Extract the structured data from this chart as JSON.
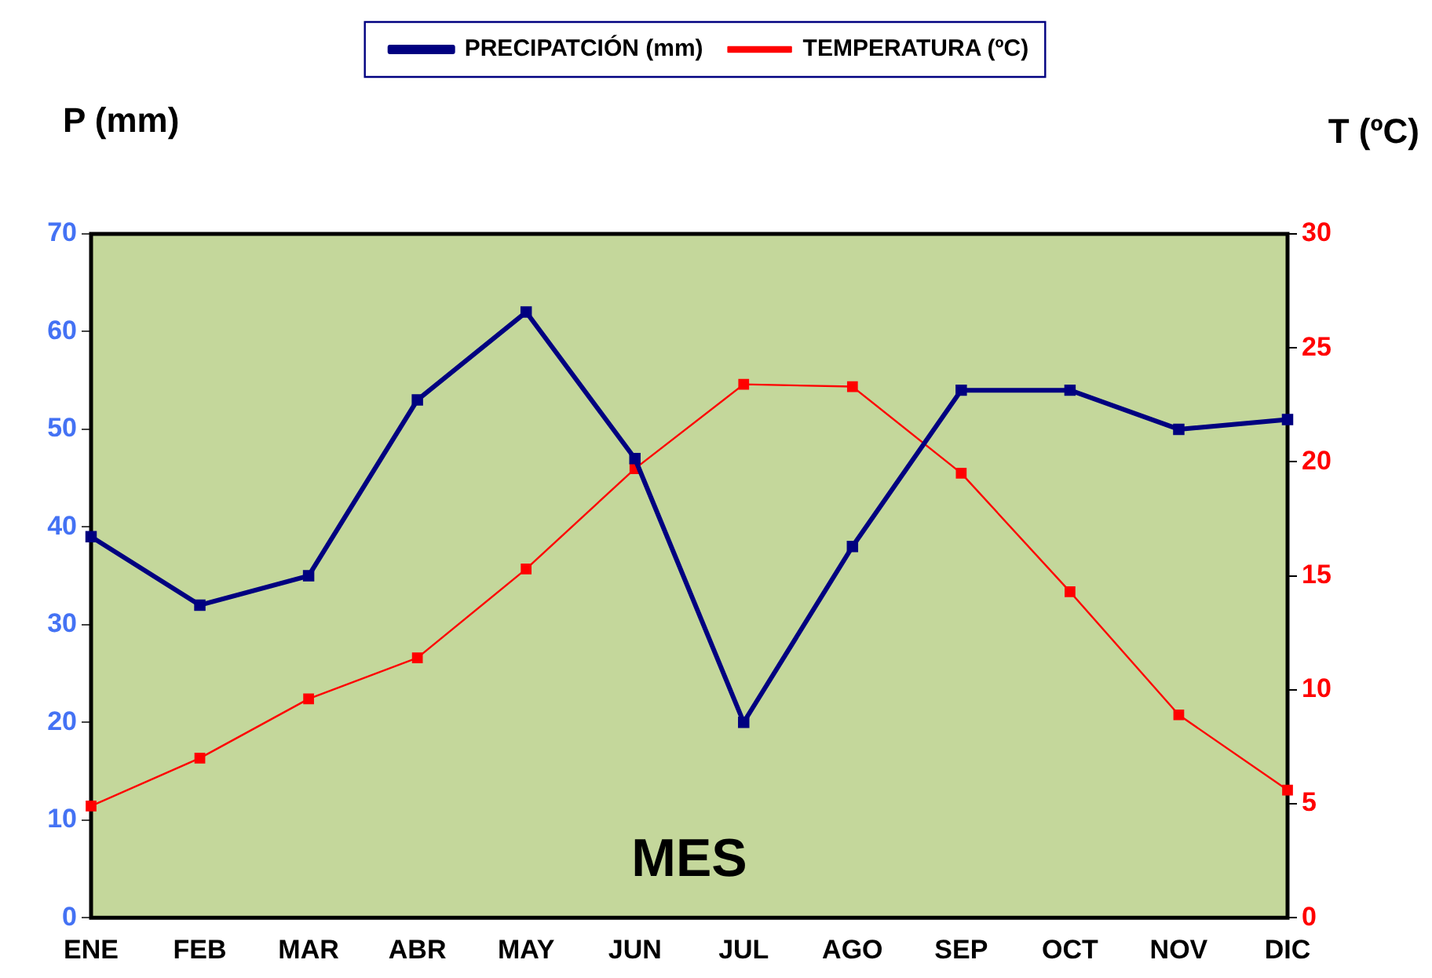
{
  "chart_data": {
    "type": "line",
    "xlabel": "MES",
    "ylabel": "P (mm)",
    "y2label": "T (ºC)",
    "categories": [
      "ENE",
      "FEB",
      "MAR",
      "ABR",
      "MAY",
      "JUN",
      "JUL",
      "AGO",
      "SEP",
      "OCT",
      "NOV",
      "DIC"
    ],
    "series": [
      {
        "name": "PRECIPATCIÓN (mm)",
        "color": "#000080",
        "values": [
          39,
          32,
          35,
          53,
          62,
          47,
          20,
          38,
          54,
          54,
          50,
          51
        ]
      },
      {
        "name": "TEMPERATURA (ºC)",
        "color": "#ff0000",
        "axis": "y2",
        "values": [
          4.9,
          7.0,
          9.6,
          11.4,
          15.3,
          19.7,
          23.4,
          23.3,
          19.5,
          14.3,
          8.9,
          5.6
        ]
      }
    ],
    "ylim": [
      0,
      70
    ],
    "yticks": [
      0,
      10,
      20,
      30,
      40,
      50,
      60,
      70
    ],
    "y2lim": [
      0,
      30
    ],
    "y2ticks": [
      0,
      5,
      10,
      15,
      20,
      25,
      30
    ],
    "grid": false,
    "legend": "top",
    "marker": "square",
    "line_style": "solid"
  }
}
